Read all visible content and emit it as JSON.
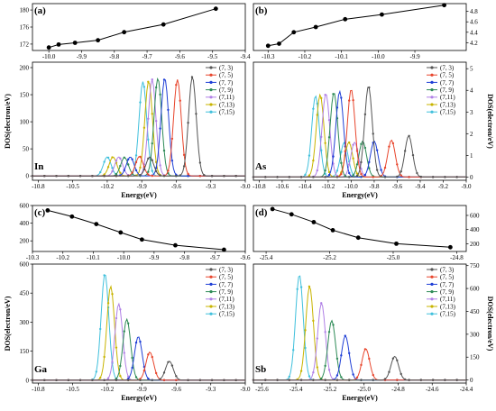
{
  "chart_data": [
    {
      "id": "a",
      "panel_label": "(a)",
      "type": "line",
      "x": [
        -10.0,
        -9.97,
        -9.92,
        -9.85,
        -9.77,
        -9.65,
        -9.49
      ],
      "y": [
        171.2,
        171.9,
        172.3,
        172.9,
        174.8,
        176.6,
        180.3
      ],
      "xlim": [
        -10.05,
        -9.4
      ],
      "ylim": [
        170.5,
        181.5
      ],
      "xticks": [
        -10.0,
        -9.9,
        -9.8,
        -9.7,
        -9.6,
        -9.5,
        -9.4
      ],
      "yticks": [
        172,
        176,
        180
      ],
      "yaxis_side": "left",
      "series_color": "#000000"
    },
    {
      "id": "b",
      "panel_label": "(b)",
      "type": "line",
      "x": [
        -10.3,
        -10.27,
        -10.23,
        -10.17,
        -10.09,
        -9.99,
        -9.82
      ],
      "y": [
        4.14,
        4.18,
        4.4,
        4.5,
        4.65,
        4.74,
        4.92
      ],
      "xlim": [
        -10.34,
        -9.76
      ],
      "ylim": [
        4.05,
        4.95
      ],
      "xticks": [
        -10.3,
        -10.2,
        -10.1,
        -10.0,
        -9.9
      ],
      "yticks": [
        4.2,
        4.4,
        4.6,
        4.8
      ],
      "yaxis_side": "right",
      "series_color": "#000000"
    },
    {
      "id": "in",
      "type": "area",
      "element": "In",
      "xlabel": "Energy(eV)",
      "ylabel": "DOS(electron/eV)",
      "xlim": [
        -10.85,
        -9.0
      ],
      "ylim": [
        -8,
        210
      ],
      "xticks": [
        -10.8,
        -10.5,
        -10.2,
        -9.9,
        -9.6,
        -9.3,
        -9.0
      ],
      "yticks": [
        0,
        50,
        100,
        150,
        200
      ],
      "yaxis_side": "left",
      "legend_position": "top-right",
      "series": [
        {
          "name": "(7, 3)",
          "color": "#555555",
          "small_peak": {
            "x": -9.83,
            "y": 35
          },
          "big_peak": {
            "x": -9.46,
            "y": 183
          }
        },
        {
          "name": "(7, 5)",
          "color": "#e8452c",
          "small_peak": {
            "x": -9.92,
            "y": 36
          },
          "big_peak": {
            "x": -9.59,
            "y": 178
          }
        },
        {
          "name": "(7, 7)",
          "color": "#1f3fd6",
          "small_peak": {
            "x": -10.0,
            "y": 35
          },
          "big_peak": {
            "x": -9.7,
            "y": 180
          }
        },
        {
          "name": "(7, 9)",
          "color": "#2e8b57",
          "small_peak": {
            "x": -10.05,
            "y": 34
          },
          "big_peak": {
            "x": -9.76,
            "y": 180
          }
        },
        {
          "name": "(7,11)",
          "color": "#b080e6",
          "small_peak": {
            "x": -10.1,
            "y": 35
          },
          "big_peak": {
            "x": -9.81,
            "y": 178
          }
        },
        {
          "name": "(7,13)",
          "color": "#c8b400",
          "small_peak": {
            "x": -10.15,
            "y": 35
          },
          "big_peak": {
            "x": -9.84,
            "y": 175
          }
        },
        {
          "name": "(7,15)",
          "color": "#40c0dc",
          "small_peak": {
            "x": -10.2,
            "y": 35
          },
          "big_peak": {
            "x": -9.89,
            "y": 174
          }
        }
      ]
    },
    {
      "id": "as",
      "type": "area",
      "element": "As",
      "xlabel": "Energy(eV)",
      "ylabel": "DOS(electron/eV)",
      "xlim": [
        -10.85,
        -9.0
      ],
      "ylim": [
        -0.15,
        5.3
      ],
      "xticks": [
        -10.8,
        -10.6,
        -10.4,
        -10.2,
        -10.0,
        -9.8,
        -9.6,
        -9.4,
        -9.2,
        -9.0
      ],
      "yticks": [
        0,
        1,
        2,
        3,
        4,
        5
      ],
      "yaxis_side": "right",
      "legend_position": "top-right",
      "series": [
        {
          "name": "(7, 3)",
          "color": "#555555",
          "small_peak": {
            "x": -9.5,
            "y": 1.9
          },
          "big_peak": {
            "x": -9.85,
            "y": 4.2
          }
        },
        {
          "name": "(7, 5)",
          "color": "#e8452c",
          "small_peak": {
            "x": -9.65,
            "y": 1.7
          },
          "big_peak": {
            "x": -10.0,
            "y": 4.05
          }
        },
        {
          "name": "(7, 7)",
          "color": "#1f3fd6",
          "small_peak": {
            "x": -9.8,
            "y": 1.65
          },
          "big_peak": {
            "x": -10.1,
            "y": 3.95
          }
        },
        {
          "name": "(7, 9)",
          "color": "#2e8b57",
          "small_peak": {
            "x": -9.9,
            "y": 1.65
          },
          "big_peak": {
            "x": -10.15,
            "y": 3.9
          }
        },
        {
          "name": "(7,11)",
          "color": "#b080e6",
          "small_peak": {
            "x": -9.97,
            "y": 1.6
          },
          "big_peak": {
            "x": -10.22,
            "y": 3.85
          }
        },
        {
          "name": "(7,13)",
          "color": "#c8b400",
          "small_peak": {
            "x": -10.02,
            "y": 1.6
          },
          "big_peak": {
            "x": -10.27,
            "y": 3.8
          }
        },
        {
          "name": "(7,15)",
          "color": "#40c0dc",
          "small_peak": {
            "x": -10.06,
            "y": 1.6
          },
          "big_peak": {
            "x": -10.31,
            "y": 3.75
          }
        }
      ]
    },
    {
      "id": "c",
      "panel_label": "(c)",
      "type": "line",
      "x": [
        -10.25,
        -10.17,
        -10.09,
        -10.01,
        -9.94,
        -9.83,
        -9.67
      ],
      "y": [
        545,
        475,
        390,
        295,
        215,
        150,
        100
      ],
      "xlim": [
        -10.3,
        -9.6
      ],
      "ylim": [
        80,
        600
      ],
      "xticks": [
        -10.3,
        -10.2,
        -10.1,
        -10.0,
        -9.9,
        -9.8,
        -9.7,
        -9.6
      ],
      "yticks": [
        200,
        400,
        600
      ],
      "yaxis_side": "left",
      "series_color": "#000000"
    },
    {
      "id": "d",
      "panel_label": "(d)",
      "type": "line",
      "x": [
        -25.38,
        -25.32,
        -25.25,
        -25.19,
        -25.11,
        -24.99,
        -24.82
      ],
      "y": [
        690,
        615,
        505,
        390,
        285,
        200,
        150
      ],
      "xlim": [
        -25.44,
        -24.77
      ],
      "ylim": [
        90,
        740
      ],
      "xticks": [
        -25.4,
        -25.2,
        -25.0,
        -24.8
      ],
      "yticks": [
        200,
        400,
        600
      ],
      "yaxis_side": "right",
      "series_color": "#000000"
    },
    {
      "id": "ga",
      "type": "area",
      "element": "Ga",
      "xlabel": "Energy(eV)",
      "ylabel": "DOS(electron/eV)",
      "xlim": [
        -10.85,
        -9.0
      ],
      "ylim": [
        -15,
        600
      ],
      "xticks": [
        -10.8,
        -10.5,
        -10.2,
        -9.9,
        -9.6,
        -9.3,
        -9.0
      ],
      "yticks": [
        0,
        150,
        300,
        450,
        600
      ],
      "yaxis_side": "left",
      "legend_position": "top-right",
      "series": [
        {
          "name": "(7, 3)",
          "color": "#555555",
          "big_peak": {
            "x": -9.66,
            "y": 98
          }
        },
        {
          "name": "(7, 5)",
          "color": "#e8452c",
          "big_peak": {
            "x": -9.83,
            "y": 145
          }
        },
        {
          "name": "(7, 7)",
          "color": "#1f3fd6",
          "big_peak": {
            "x": -9.93,
            "y": 225
          }
        },
        {
          "name": "(7, 9)",
          "color": "#2e8b57",
          "big_peak": {
            "x": -10.03,
            "y": 315
          }
        },
        {
          "name": "(7,11)",
          "color": "#b080e6",
          "big_peak": {
            "x": -10.1,
            "y": 395
          }
        },
        {
          "name": "(7,13)",
          "color": "#c8b400",
          "big_peak": {
            "x": -10.17,
            "y": 485
          }
        },
        {
          "name": "(7,15)",
          "color": "#40c0dc",
          "big_peak": {
            "x": -10.22,
            "y": 550
          }
        }
      ]
    },
    {
      "id": "sb",
      "type": "area",
      "element": "Sb",
      "xlabel": "Energy(eV)",
      "ylabel": "DOS(electron/eV)",
      "xlim": [
        -25.65,
        -24.4
      ],
      "ylim": [
        -20,
        760
      ],
      "xticks": [
        -25.6,
        -25.4,
        -25.2,
        -25.0,
        -24.8,
        -24.6,
        -24.4
      ],
      "yticks": [
        0,
        150,
        300,
        450,
        600,
        750
      ],
      "yaxis_side": "right",
      "legend_position": "top-right",
      "series": [
        {
          "name": "(7, 3)",
          "color": "#555555",
          "big_peak": {
            "x": -24.82,
            "y": 155
          }
        },
        {
          "name": "(7, 5)",
          "color": "#e8452c",
          "big_peak": {
            "x": -24.99,
            "y": 205
          }
        },
        {
          "name": "(7, 7)",
          "color": "#1f3fd6",
          "big_peak": {
            "x": -25.11,
            "y": 290
          }
        },
        {
          "name": "(7, 9)",
          "color": "#2e8b57",
          "big_peak": {
            "x": -25.19,
            "y": 390
          }
        },
        {
          "name": "(7,11)",
          "color": "#b080e6",
          "big_peak": {
            "x": -25.25,
            "y": 505
          }
        },
        {
          "name": "(7,13)",
          "color": "#c8b400",
          "big_peak": {
            "x": -25.32,
            "y": 615
          }
        },
        {
          "name": "(7,15)",
          "color": "#40c0dc",
          "big_peak": {
            "x": -25.38,
            "y": 690
          }
        }
      ]
    }
  ]
}
